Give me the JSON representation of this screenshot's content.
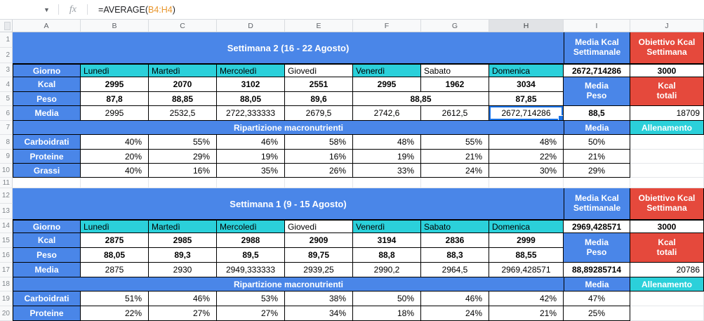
{
  "formula_bar": {
    "fx_label": "fx",
    "formula_prefix": "=AVERAGE(",
    "formula_range": "B4:H4",
    "formula_suffix": ")"
  },
  "columns": [
    "A",
    "B",
    "C",
    "D",
    "E",
    "F",
    "G",
    "H",
    "I",
    "J"
  ],
  "rows": [
    "1",
    "2",
    "3",
    "4",
    "5",
    "6",
    "7",
    "8",
    "9",
    "10",
    "11",
    "12",
    "13",
    "14",
    "15",
    "16",
    "17",
    "18",
    "19",
    "20"
  ],
  "selected": {
    "cell": "H6",
    "column": "H"
  },
  "colors": {
    "header_blue": "#4a86e8",
    "day_cyan": "#2bd0da",
    "target_red": "#e5493c",
    "selection_blue": "#1a73e8"
  },
  "week2": {
    "title": "Settimana 2 (16 - 22 Agosto)",
    "media_kcal_header": "Media Kcal Settimanale",
    "obiettivo_header": "Obiettivo Kcal Settimana",
    "giorno_label": "Giorno",
    "days": [
      "Lunedì",
      "Martedì",
      "Mercoledì",
      "Giovedì",
      "Venerdì",
      "Sabato",
      "Domenica"
    ],
    "media_kcal_value": "2672,714286",
    "obiettivo_value": "3000",
    "kcal_label": "Kcal",
    "kcal": [
      "2995",
      "2070",
      "3102",
      "2551",
      "2995",
      "1962",
      "3034"
    ],
    "peso_label": "Peso",
    "peso": [
      "87,8",
      "88,85",
      "88,05",
      "89,6",
      "88,85",
      "87,85"
    ],
    "media_label": "Media",
    "media": [
      "2995",
      "2532,5",
      "2722,333333",
      "2679,5",
      "2742,6",
      "2612,5",
      "2672,714286"
    ],
    "media_peso_header": "Media Peso",
    "kcal_totali_header": "Kcal totali",
    "media_peso_value": "88,5",
    "kcal_totali_value": "18709",
    "ripartizione_title": "Ripartizione macronutrienti",
    "media_col_header": "Media",
    "allenamento_header": "Allenamento",
    "carboidrati_label": "Carboidrati",
    "carboidrati": [
      "40%",
      "55%",
      "46%",
      "58%",
      "48%",
      "55%",
      "48%"
    ],
    "carboidrati_media": "50%",
    "proteine_label": "Proteine",
    "proteine": [
      "20%",
      "29%",
      "19%",
      "16%",
      "19%",
      "21%",
      "22%"
    ],
    "proteine_media": "21%",
    "grassi_label": "Grassi",
    "grassi": [
      "40%",
      "16%",
      "35%",
      "26%",
      "33%",
      "24%",
      "30%"
    ],
    "grassi_media": "29%"
  },
  "week1": {
    "title": "Settimana 1 (9 - 15 Agosto)",
    "media_kcal_header": "Media Kcal Settimanale",
    "obiettivo_header": "Obiettivo Kcal Settimana",
    "giorno_label": "Giorno",
    "days": [
      "Lunedì",
      "Martedì",
      "Mercoledì",
      "Giovedì",
      "Venerdì",
      "Sabato",
      "Domenica"
    ],
    "media_kcal_value": "2969,428571",
    "obiettivo_value": "3000",
    "kcal_label": "Kcal",
    "kcal": [
      "2875",
      "2985",
      "2988",
      "2909",
      "3194",
      "2836",
      "2999"
    ],
    "peso_label": "Peso",
    "peso": [
      "88,05",
      "89,3",
      "89,5",
      "89,75",
      "88,8",
      "88,3",
      "88,55"
    ],
    "media_label": "Media",
    "media": [
      "2875",
      "2930",
      "2949,333333",
      "2939,25",
      "2990,2",
      "2964,5",
      "2969,428571"
    ],
    "media_peso_header": "Media Peso",
    "kcal_totali_header": "Kcal totali",
    "media_peso_value": "88,89285714",
    "kcal_totali_value": "20786",
    "ripartizione_title": "Ripartizione macronutrienti",
    "media_col_header": "Media",
    "allenamento_header": "Allenamento",
    "carboidrati_label": "Carboidrati",
    "carboidrati": [
      "51%",
      "46%",
      "53%",
      "38%",
      "50%",
      "46%",
      "42%"
    ],
    "carboidrati_media": "47%",
    "proteine_label": "Proteine",
    "proteine": [
      "22%",
      "27%",
      "27%",
      "34%",
      "18%",
      "24%",
      "21%"
    ],
    "proteine_media": "25%"
  }
}
